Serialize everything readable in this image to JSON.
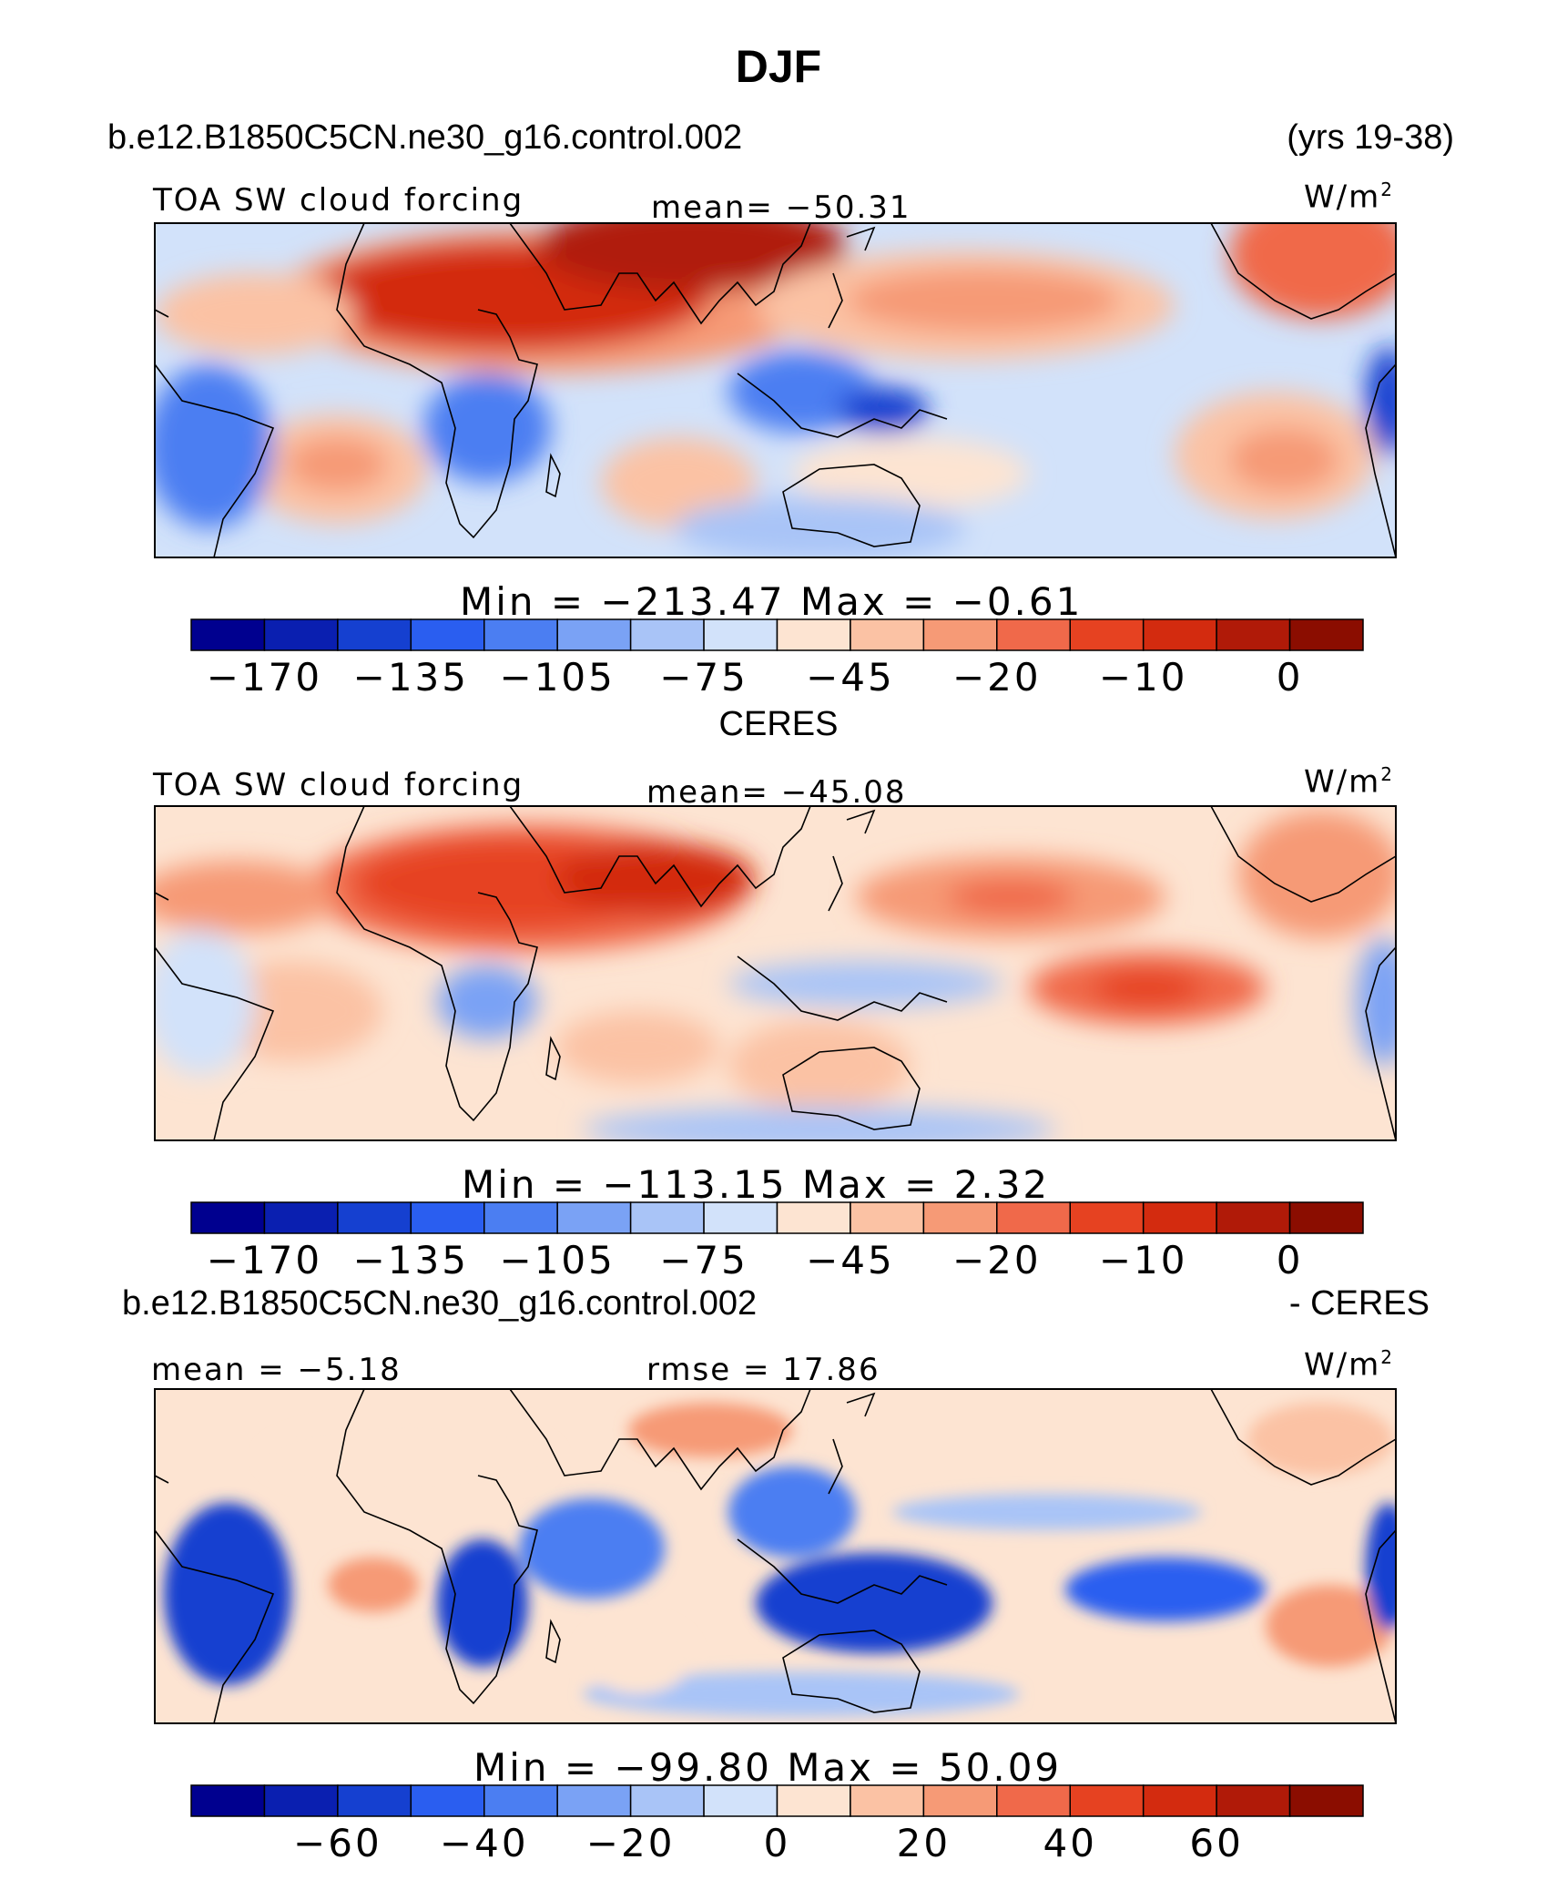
{
  "title": "DJF",
  "panels": [
    {
      "heading_left": "b.e12.B1850C5CN.ne30_g16.control.002",
      "heading_right": "(yrs 19-38)",
      "label_left": "TOA SW cloud forcing",
      "label_center": "mean= −50.31",
      "units_base": "W/m",
      "units_exp": "2",
      "minmax": "Min  =  −213.47  Max  =    −0.61",
      "colorbar_ticks": [
        "−170",
        "−135",
        "−105",
        "−75",
        "−45",
        "−20",
        "−10",
        "0"
      ]
    },
    {
      "heading_center": "CERES",
      "label_left": "TOA SW cloud forcing",
      "label_center": "mean= −45.08",
      "units_base": "W/m",
      "units_exp": "2",
      "minmax": "Min  =  −113.15  Max  =     2.32",
      "colorbar_ticks": [
        "−170",
        "−135",
        "−105",
        "−75",
        "−45",
        "−20",
        "−10",
        "0"
      ]
    },
    {
      "heading_left": "b.e12.B1850C5CN.ne30_g16.control.002",
      "heading_right": "- CERES",
      "label_left": "mean =  −5.18",
      "label_center": "rmse =  17.86",
      "units_base": "W/m",
      "units_exp": "2",
      "minmax": "Min  =  −99.80  Max  =   50.09",
      "colorbar_ticks": [
        "−60",
        "−40",
        "−20",
        "0",
        "20",
        "40",
        "60"
      ]
    }
  ],
  "chart_data": {
    "type": "heatmap",
    "title": "DJF",
    "colorbar_colors": [
      "#00008f",
      "#0a1fb0",
      "#1540d0",
      "#2a5ef0",
      "#4b7ef2",
      "#7aa2f5",
      "#a9c4f7",
      "#d2e2fa",
      "#fde4d2",
      "#fbc2a4",
      "#f69a76",
      "#f0694a",
      "#e64221",
      "#d32b0f",
      "#b01a08",
      "#8b0d00"
    ],
    "panels": [
      {
        "name": "b.e12.B1850C5CN.ne30_g16.control.002",
        "field": "TOA SW cloud forcing",
        "units": "W/m2",
        "mean": -50.31,
        "min": -213.47,
        "max": -0.61,
        "contour_levels": [
          -170,
          -135,
          -105,
          -75,
          -45,
          -20,
          -10,
          0
        ]
      },
      {
        "name": "CERES",
        "field": "TOA SW cloud forcing",
        "units": "W/m2",
        "mean": -45.08,
        "min": -113.15,
        "max": 2.32,
        "contour_levels": [
          -170,
          -135,
          -105,
          -75,
          -45,
          -20,
          -10,
          0
        ]
      },
      {
        "name": "b.e12.B1850C5CN.ne30_g16.control.002 - CERES",
        "units": "W/m2",
        "mean": -5.18,
        "rmse": 17.86,
        "min": -99.8,
        "max": 50.09,
        "contour_levels": [
          -60,
          -40,
          -20,
          0,
          20,
          40,
          60
        ]
      }
    ]
  }
}
